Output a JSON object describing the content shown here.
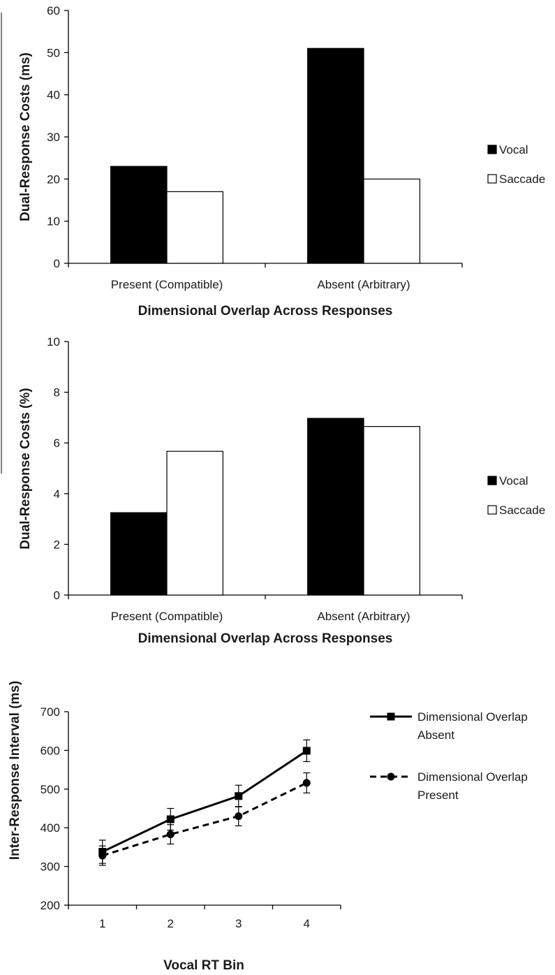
{
  "colors": {
    "ink": "#000000",
    "fill_dark": "#000000",
    "fill_light": "#ffffff",
    "frame_line": "#555555"
  },
  "chart_data": [
    {
      "type": "bar",
      "title": "",
      "xlabel": "Dimensional Overlap Across Responses",
      "ylabel": "Dual-Response Costs (ms)",
      "categories": [
        "Present (Compatible)",
        "Absent (Arbitrary)"
      ],
      "series": [
        {
          "name": "Vocal",
          "values": [
            23,
            51
          ],
          "fill": "#000000"
        },
        {
          "name": "Saccade",
          "values": [
            17,
            20
          ],
          "fill": "#ffffff"
        }
      ],
      "ylim": [
        0,
        60
      ],
      "yticks": [
        "0",
        "10",
        "20",
        "30",
        "40",
        "50",
        "60"
      ],
      "grid": false,
      "legend": "right"
    },
    {
      "type": "bar",
      "title": "",
      "xlabel": "Dimensional Overlap Across Responses",
      "ylabel": "Dual-Response Costs (%)",
      "categories": [
        "Present (Compatible)",
        "Absent (Arbitrary)"
      ],
      "series": [
        {
          "name": "Vocal",
          "values": [
            3.25,
            6.97
          ],
          "fill": "#000000"
        },
        {
          "name": "Saccade",
          "values": [
            5.67,
            6.65
          ],
          "fill": "#ffffff"
        }
      ],
      "ylim": [
        0,
        10
      ],
      "yticks": [
        "0",
        "2",
        "4",
        "6",
        "8",
        "10"
      ],
      "grid": false,
      "legend": "right"
    },
    {
      "type": "line",
      "title": "",
      "xlabel": "Vocal RT Bin",
      "ylabel": "Inter-Response Interval (ms)",
      "x": [
        "1",
        "2",
        "3",
        "4"
      ],
      "series": [
        {
          "name": "Dimensional Overlap Absent",
          "legend_lines": [
            "Dimensional Overlap",
            "Absent"
          ],
          "values": [
            338,
            422,
            482,
            599
          ],
          "error": [
            30,
            28,
            28,
            28
          ],
          "marker": "square",
          "dash": "solid"
        },
        {
          "name": "Dimensional Overlap Present",
          "legend_lines": [
            "Dimensional Overlap",
            "Present"
          ],
          "values": [
            328,
            383,
            430,
            516
          ],
          "error": [
            25,
            25,
            25,
            26
          ],
          "marker": "circle",
          "dash": "dashed"
        }
      ],
      "ylim": [
        200,
        700
      ],
      "yticks": [
        "200",
        "300",
        "400",
        "500",
        "600",
        "700"
      ],
      "grid": false,
      "legend": "right"
    }
  ]
}
